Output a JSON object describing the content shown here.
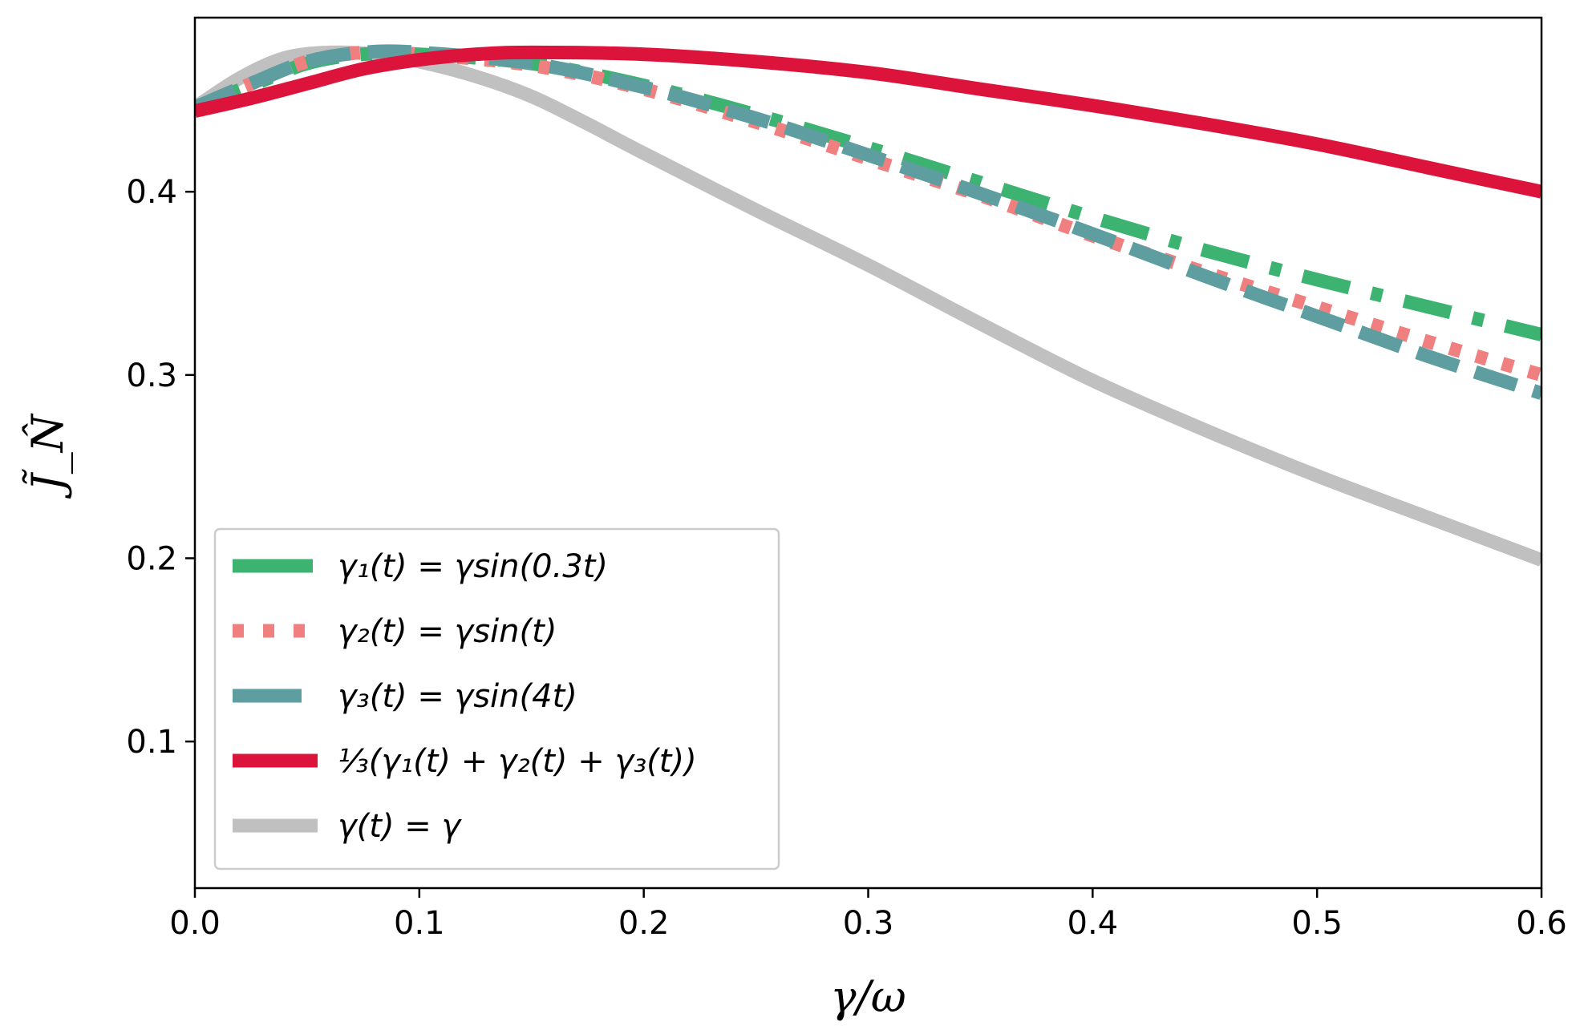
{
  "chart_data": {
    "type": "line",
    "title": "",
    "xlabel": "γ/ω",
    "ylabel": "J̃_N̂",
    "xlim": [
      0.0,
      0.6
    ],
    "ylim": [
      0.02,
      0.495
    ],
    "grid": false,
    "legend_position": "bottom-left",
    "x_ticks": [
      0.0,
      0.1,
      0.2,
      0.3,
      0.4,
      0.5,
      0.6
    ],
    "x_tick_labels": [
      "0.0",
      "0.1",
      "0.2",
      "0.3",
      "0.4",
      "0.5",
      "0.6"
    ],
    "y_ticks": [
      0.1,
      0.2,
      0.3,
      0.4
    ],
    "y_tick_labels": [
      "0.1",
      "0.2",
      "0.3",
      "0.4"
    ],
    "series": [
      {
        "name": "γ₁(t) = γsin(0.3t)",
        "color": "#3cb371",
        "style": "dashdot",
        "x": [
          0.0,
          0.025,
          0.05,
          0.075,
          0.1,
          0.15,
          0.2,
          0.25,
          0.3,
          0.35,
          0.4,
          0.45,
          0.5,
          0.55,
          0.6
        ],
        "y": [
          0.446,
          0.458,
          0.47,
          0.475,
          0.475,
          0.47,
          0.458,
          0.442,
          0.424,
          0.405,
          0.386,
          0.368,
          0.352,
          0.337,
          0.322
        ]
      },
      {
        "name": "γ₂(t) = γsin(t)",
        "color": "#f08080",
        "style": "dotted",
        "x": [
          0.0,
          0.025,
          0.05,
          0.075,
          0.1,
          0.15,
          0.2,
          0.25,
          0.3,
          0.35,
          0.4,
          0.45,
          0.5,
          0.55,
          0.6
        ],
        "y": [
          0.446,
          0.459,
          0.471,
          0.476,
          0.475,
          0.469,
          0.456,
          0.438,
          0.418,
          0.398,
          0.376,
          0.356,
          0.337,
          0.318,
          0.3
        ]
      },
      {
        "name": "γ₃(t) = γsin(4t)",
        "color": "#5f9ea0",
        "style": "dashed",
        "x": [
          0.0,
          0.025,
          0.05,
          0.075,
          0.1,
          0.15,
          0.2,
          0.25,
          0.3,
          0.35,
          0.4,
          0.45,
          0.5,
          0.55,
          0.6
        ],
        "y": [
          0.446,
          0.459,
          0.471,
          0.476,
          0.476,
          0.47,
          0.457,
          0.44,
          0.42,
          0.399,
          0.377,
          0.354,
          0.332,
          0.31,
          0.29
        ]
      },
      {
        "name": "⅓(γ₁(t) + γ₂(t) + γ₃(t))",
        "color": "#dc143c",
        "style": "solid",
        "x": [
          0.0,
          0.025,
          0.05,
          0.075,
          0.1,
          0.125,
          0.15,
          0.2,
          0.25,
          0.3,
          0.35,
          0.4,
          0.45,
          0.5,
          0.55,
          0.6
        ],
        "y": [
          0.444,
          0.451,
          0.459,
          0.467,
          0.472,
          0.475,
          0.476,
          0.475,
          0.471,
          0.465,
          0.456,
          0.447,
          0.437,
          0.426,
          0.413,
          0.4
        ]
      },
      {
        "name": "γ(t) = γ",
        "color": "#c0c0c0",
        "style": "solid",
        "x": [
          0.0,
          0.02,
          0.04,
          0.06,
          0.08,
          0.1,
          0.125,
          0.15,
          0.175,
          0.2,
          0.25,
          0.3,
          0.35,
          0.4,
          0.45,
          0.5,
          0.55,
          0.6
        ],
        "y": [
          0.446,
          0.462,
          0.473,
          0.476,
          0.475,
          0.471,
          0.463,
          0.452,
          0.437,
          0.421,
          0.39,
          0.36,
          0.328,
          0.297,
          0.27,
          0.245,
          0.222,
          0.199
        ]
      }
    ]
  }
}
